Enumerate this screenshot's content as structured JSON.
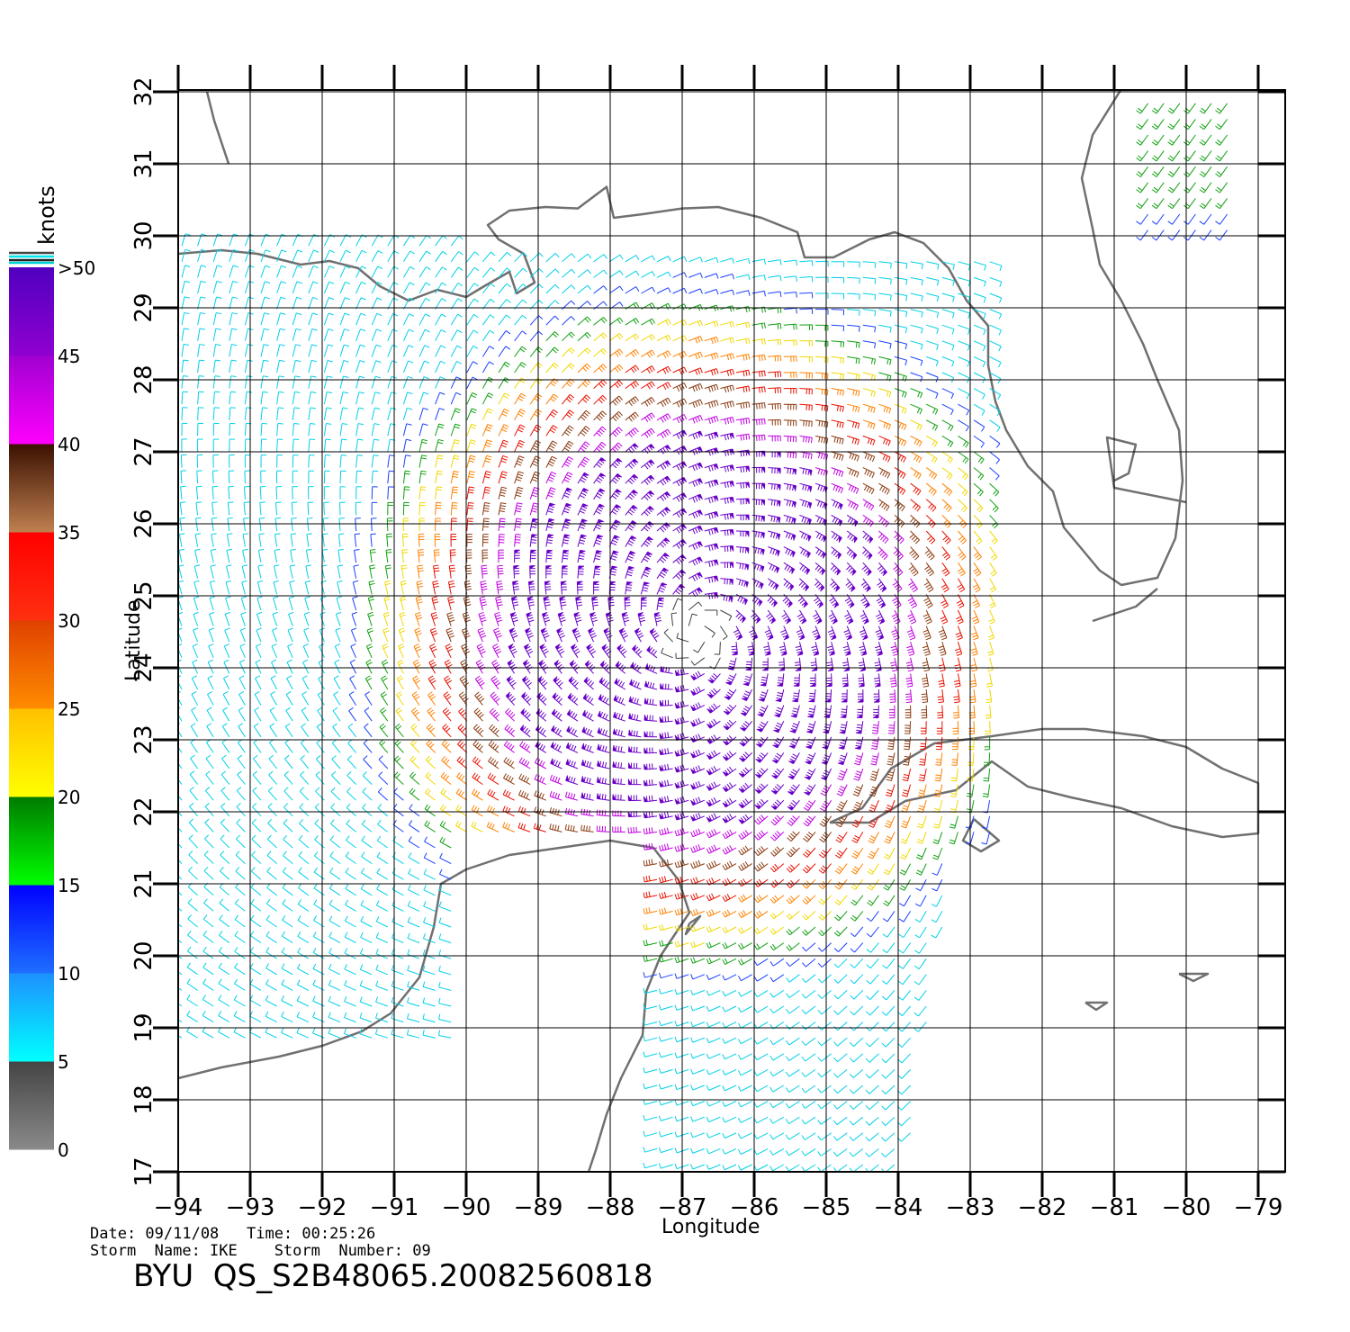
{
  "map": {
    "lon_ticks": [
      "-94",
      "-93",
      "-92",
      "-91",
      "-90",
      "-89",
      "-88",
      "-87",
      "-86",
      "-85",
      "-84",
      "-83",
      "-82",
      "-81",
      "-80",
      "-79"
    ],
    "lat_ticks": [
      "17",
      "18",
      "19",
      "20",
      "21",
      "22",
      "23",
      "24",
      "25",
      "26",
      "27",
      "28",
      "29",
      "30",
      "31",
      "32"
    ],
    "lon_range": [
      -94,
      -79
    ],
    "lat_range": [
      17,
      32
    ],
    "xlabel": "Longitude",
    "ylabel": "Latitude",
    "grid": true,
    "storm_center": {
      "lon": -86.8,
      "lat": 24.5
    }
  },
  "colorbar": {
    "title": "knots",
    "labels": [
      "0",
      "5",
      "10",
      "15",
      "20",
      "25",
      "30",
      "35",
      "40",
      "45",
      ">50"
    ],
    "bands": [
      {
        "from": 0,
        "to": 5,
        "top": "#444444",
        "bottom": "#8a8a8a"
      },
      {
        "from": 5,
        "to": 10,
        "top": "#1e90ff",
        "bottom": "#00ffff"
      },
      {
        "from": 10,
        "to": 15,
        "top": "#0000ff",
        "bottom": "#1e6fff"
      },
      {
        "from": 15,
        "to": 20,
        "top": "#007a00",
        "bottom": "#00ff00"
      },
      {
        "from": 20,
        "to": 25,
        "top": "#ffc000",
        "bottom": "#ffff00"
      },
      {
        "from": 25,
        "to": 30,
        "top": "#e04000",
        "bottom": "#ff8c00"
      },
      {
        "from": 30,
        "to": 35,
        "top": "#ff0000",
        "bottom": "#ff3010"
      },
      {
        "from": 35,
        "to": 40,
        "top": "#3a1000",
        "bottom": "#c08050"
      },
      {
        "from": 40,
        "to": 45,
        "top": "#a000d0",
        "bottom": "#ff00ff"
      },
      {
        "from": 45,
        "to": 50,
        "top": "#5000c0",
        "bottom": "#9000d0"
      }
    ]
  },
  "info": {
    "line1": "Date: 09/11/08   Time: 00:25:26",
    "line2": "Storm  Name: IKE    Storm  Number: 09",
    "product": "BYU  QS_S2B48065.20082560818"
  },
  "colors": {
    "coast": "#707070",
    "grid": "#000000"
  }
}
